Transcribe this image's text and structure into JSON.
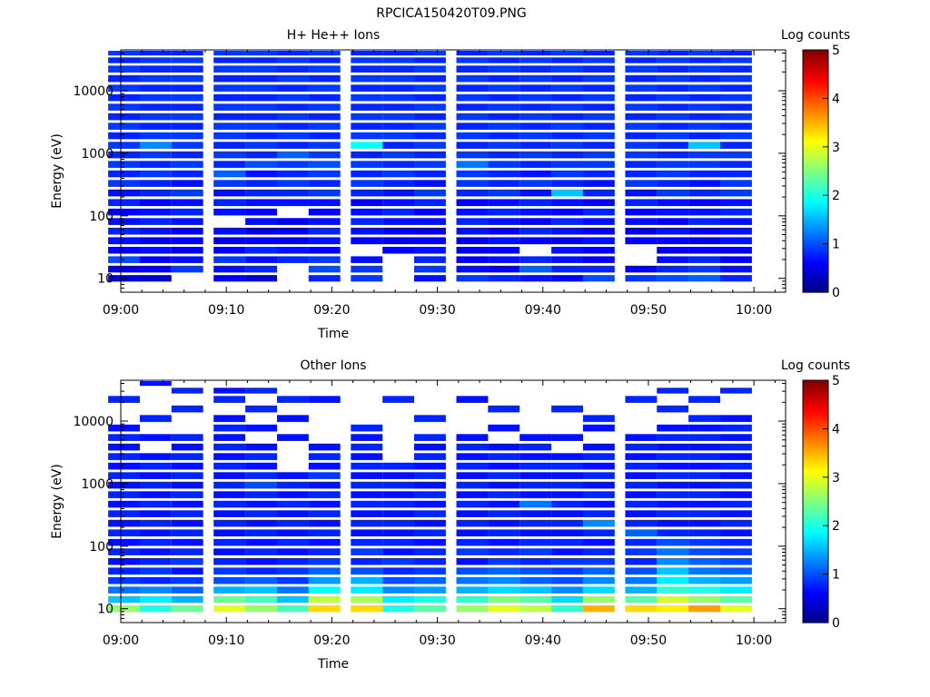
{
  "figure": {
    "title": "RPCICA150420T09.PNG"
  },
  "chart_data": [
    {
      "type": "heatmap",
      "title": "H+ He++ Ions",
      "xlabel": "Time",
      "ylabel": "Energy (eV)",
      "y_scale": "log",
      "ylim": [
        6,
        45000
      ],
      "xlim": [
        "09:00",
        "10:03"
      ],
      "x_ticks": [
        "09:00",
        "09:10",
        "09:20",
        "09:30",
        "09:40",
        "09:50",
        "10:00"
      ],
      "y_ticks": [
        "10",
        "100",
        "1000",
        "10000"
      ],
      "colorbar": {
        "label": "Log counts",
        "range": [
          0,
          5
        ],
        "ticks": [
          "0",
          "1",
          "2",
          "3",
          "4",
          "5"
        ]
      },
      "time_bins": [
        "09:00",
        "09:03",
        "09:06",
        "09:10",
        "09:13",
        "09:16",
        "09:19",
        "09:23",
        "09:26",
        "09:29",
        "09:33",
        "09:36",
        "09:39",
        "09:42",
        "09:45",
        "09:49",
        "09:52",
        "09:55",
        "09:58"
      ],
      "energy_bins_eV": [
        10,
        14,
        20,
        28,
        40,
        57,
        81,
        115,
        163,
        232,
        330,
        468,
        665,
        945,
        1342,
        1906,
        2708,
        3846,
        5463,
        7760,
        11022,
        15656,
        22238,
        31588,
        40000
      ],
      "log_counts": [
        [
          0.5,
          0.4,
          null,
          0.6,
          0.4,
          null,
          0.8,
          0.9,
          null,
          0.7,
          0.9,
          0.8,
          0.7,
          0.6,
          1.0,
          0.9,
          1.0,
          1.1,
          0.8
        ],
        [
          0.5,
          0.6,
          0.9,
          0.7,
          0.8,
          null,
          1.0,
          0.9,
          null,
          0.9,
          0.7,
          0.6,
          1.1,
          0.8,
          0.8,
          0.6,
          0.8,
          0.9,
          0.7
        ],
        [
          1.0,
          0.6,
          0.7,
          0.9,
          0.7,
          0.8,
          0.9,
          0.7,
          null,
          0.8,
          0.6,
          0.7,
          0.8,
          0.7,
          0.6,
          null,
          0.7,
          0.8,
          0.6
        ],
        [
          0.6,
          0.7,
          0.5,
          0.6,
          0.8,
          0.7,
          0.6,
          null,
          0.6,
          0.7,
          0.5,
          0.6,
          null,
          0.7,
          0.6,
          null,
          0.5,
          0.6,
          0.5
        ],
        [
          0.7,
          0.5,
          0.6,
          0.5,
          0.6,
          0.5,
          0.7,
          0.6,
          0.5,
          0.6,
          0.5,
          0.7,
          0.6,
          0.5,
          0.7,
          0.6,
          0.6,
          0.5,
          0.7
        ],
        [
          0.8,
          0.7,
          0.6,
          0.7,
          0.5,
          0.6,
          0.8,
          0.7,
          0.6,
          0.5,
          0.7,
          0.6,
          0.8,
          0.7,
          0.6,
          0.5,
          0.7,
          0.6,
          0.7
        ],
        [
          0.7,
          0.8,
          0.7,
          null,
          0.7,
          0.6,
          0.7,
          0.8,
          0.7,
          0.7,
          0.8,
          0.7,
          0.6,
          0.8,
          0.7,
          0.7,
          0.6,
          0.8,
          0.7
        ],
        [
          0.6,
          0.7,
          0.8,
          0.7,
          0.6,
          null,
          0.6,
          0.7,
          0.8,
          0.6,
          0.7,
          0.8,
          0.7,
          0.6,
          0.8,
          0.6,
          0.7,
          0.7,
          0.8
        ],
        [
          0.8,
          0.6,
          0.7,
          0.8,
          0.7,
          0.7,
          0.7,
          0.6,
          0.7,
          0.8,
          0.6,
          0.7,
          0.8,
          0.7,
          0.6,
          0.8,
          0.7,
          0.6,
          0.7
        ],
        [
          0.7,
          0.8,
          0.9,
          0.7,
          0.8,
          0.8,
          0.9,
          0.8,
          0.7,
          0.9,
          0.8,
          0.9,
          0.7,
          1.6,
          0.8,
          0.7,
          0.9,
          0.8,
          0.9
        ],
        [
          0.9,
          0.8,
          0.7,
          0.9,
          0.8,
          0.9,
          0.8,
          0.9,
          0.8,
          0.7,
          0.9,
          0.8,
          0.9,
          0.8,
          0.7,
          0.9,
          0.8,
          0.7,
          0.9
        ],
        [
          0.8,
          0.9,
          0.8,
          1.1,
          0.7,
          0.8,
          0.9,
          0.8,
          0.9,
          0.8,
          0.9,
          0.8,
          0.7,
          0.9,
          0.8,
          0.8,
          0.9,
          0.8,
          0.8
        ],
        [
          0.9,
          0.8,
          0.9,
          0.8,
          1.0,
          0.9,
          1.0,
          0.9,
          0.8,
          0.9,
          1.2,
          0.9,
          0.8,
          0.9,
          0.9,
          0.8,
          0.9,
          0.9,
          0.8
        ],
        [
          0.8,
          0.9,
          0.8,
          0.9,
          0.8,
          1.1,
          0.9,
          0.8,
          0.9,
          0.8,
          0.9,
          0.8,
          0.9,
          0.8,
          0.9,
          0.9,
          0.8,
          0.9,
          0.9
        ],
        [
          0.9,
          1.3,
          0.9,
          0.8,
          0.9,
          0.8,
          0.9,
          1.9,
          0.8,
          0.9,
          0.8,
          0.9,
          0.8,
          0.9,
          0.8,
          0.9,
          0.8,
          1.6,
          0.8
        ],
        [
          0.8,
          0.9,
          0.9,
          0.9,
          0.8,
          0.9,
          0.8,
          0.9,
          0.9,
          0.8,
          0.9,
          0.8,
          0.9,
          0.8,
          0.9,
          0.8,
          0.9,
          0.8,
          0.9
        ],
        [
          0.9,
          0.8,
          0.8,
          0.9,
          0.9,
          0.8,
          0.9,
          0.8,
          0.8,
          0.9,
          0.8,
          0.9,
          0.8,
          0.9,
          0.8,
          0.9,
          0.8,
          0.9,
          0.8
        ],
        [
          0.8,
          0.9,
          0.9,
          0.8,
          0.8,
          0.9,
          0.8,
          0.9,
          0.9,
          0.8,
          0.9,
          0.8,
          0.9,
          0.8,
          0.9,
          0.8,
          0.9,
          0.8,
          0.9
        ],
        [
          0.9,
          0.8,
          0.8,
          0.9,
          0.9,
          0.8,
          0.9,
          0.8,
          0.8,
          0.9,
          0.8,
          0.9,
          0.8,
          0.9,
          0.8,
          0.9,
          0.8,
          0.9,
          0.8
        ],
        [
          0.8,
          0.9,
          0.9,
          0.8,
          0.8,
          0.9,
          0.8,
          0.9,
          0.9,
          0.8,
          0.9,
          0.8,
          0.9,
          0.8,
          0.9,
          0.8,
          0.9,
          0.8,
          0.9
        ],
        [
          0.9,
          0.8,
          0.8,
          0.9,
          0.9,
          0.8,
          0.9,
          0.8,
          0.8,
          0.9,
          0.8,
          0.9,
          0.8,
          0.9,
          0.8,
          0.9,
          0.8,
          0.9,
          0.8
        ],
        [
          0.8,
          0.9,
          0.9,
          0.8,
          0.8,
          0.9,
          0.8,
          0.9,
          0.9,
          0.8,
          0.9,
          0.8,
          0.9,
          0.8,
          0.9,
          0.8,
          0.9,
          0.8,
          0.9
        ],
        [
          0.9,
          0.8,
          0.8,
          0.9,
          0.9,
          0.8,
          0.9,
          0.8,
          0.8,
          0.9,
          0.8,
          0.9,
          0.8,
          0.9,
          0.8,
          0.9,
          0.8,
          0.9,
          0.8
        ],
        [
          0.8,
          0.9,
          0.9,
          0.8,
          0.8,
          0.9,
          0.8,
          0.9,
          0.9,
          0.8,
          0.9,
          0.8,
          0.9,
          0.8,
          0.9,
          0.8,
          0.9,
          0.8,
          0.9
        ],
        [
          0.9,
          0.8,
          0.8,
          0.9,
          0.9,
          0.8,
          0.9,
          0.8,
          0.8,
          0.9,
          0.8,
          0.9,
          0.8,
          0.9,
          0.8,
          0.9,
          0.8,
          0.9,
          0.8
        ]
      ]
    },
    {
      "type": "heatmap",
      "title": "Other Ions",
      "xlabel": "Time",
      "ylabel": "Energy (eV)",
      "y_scale": "log",
      "ylim": [
        6,
        45000
      ],
      "xlim": [
        "09:00",
        "10:03"
      ],
      "x_ticks": [
        "09:00",
        "09:10",
        "09:20",
        "09:30",
        "09:40",
        "09:50",
        "10:00"
      ],
      "y_ticks": [
        "10",
        "100",
        "1000",
        "10000"
      ],
      "colorbar": {
        "label": "Log counts",
        "range": [
          0,
          5
        ],
        "ticks": [
          "0",
          "1",
          "2",
          "3",
          "4",
          "5"
        ]
      },
      "time_bins": [
        "09:00",
        "09:03",
        "09:06",
        "09:10",
        "09:13",
        "09:16",
        "09:19",
        "09:23",
        "09:26",
        "09:29",
        "09:33",
        "09:36",
        "09:39",
        "09:42",
        "09:45",
        "09:49",
        "09:52",
        "09:55",
        "09:58"
      ],
      "energy_bins_eV": [
        10,
        14,
        20,
        28,
        40,
        57,
        81,
        115,
        163,
        232,
        330,
        468,
        665,
        945,
        1342,
        1906,
        2708,
        3846,
        5463,
        7760,
        11022,
        15656,
        22238,
        31588,
        40000
      ],
      "log_counts": [
        [
          2.6,
          2.0,
          2.4,
          3.0,
          2.6,
          2.2,
          3.3,
          3.3,
          2.0,
          2.3,
          2.6,
          3.0,
          2.8,
          2.1,
          3.5,
          3.3,
          3.2,
          3.6,
          3.0
        ],
        [
          1.6,
          1.8,
          1.5,
          2.4,
          2.2,
          1.6,
          2.8,
          2.7,
          1.8,
          2.0,
          2.1,
          2.5,
          2.3,
          1.7,
          2.6,
          2.3,
          2.9,
          2.6,
          2.3
        ],
        [
          1.2,
          1.3,
          1.1,
          1.5,
          1.6,
          1.2,
          1.9,
          1.8,
          1.3,
          1.4,
          1.5,
          1.7,
          1.6,
          1.3,
          1.7,
          1.5,
          2.1,
          2.0,
          1.8
        ],
        [
          0.9,
          0.8,
          0.9,
          1.0,
          1.1,
          0.9,
          1.4,
          1.5,
          1.0,
          1.1,
          1.2,
          1.3,
          1.1,
          1.0,
          1.3,
          1.2,
          1.8,
          1.5,
          1.4
        ],
        [
          0.8,
          0.9,
          0.7,
          0.9,
          0.8,
          0.9,
          1.1,
          1.0,
          0.8,
          0.9,
          1.0,
          1.1,
          1.0,
          0.9,
          1.1,
          1.0,
          1.6,
          1.2,
          1.1
        ],
        [
          0.7,
          0.8,
          0.9,
          0.8,
          0.7,
          0.8,
          0.9,
          0.8,
          0.9,
          0.8,
          0.7,
          0.9,
          0.8,
          0.9,
          0.9,
          0.8,
          1.3,
          1.1,
          1.0
        ],
        [
          0.8,
          0.7,
          0.8,
          0.7,
          0.8,
          0.7,
          0.8,
          0.9,
          0.7,
          0.8,
          0.9,
          0.8,
          0.9,
          0.7,
          0.8,
          0.9,
          1.2,
          1.0,
          0.9
        ],
        [
          0.7,
          0.8,
          0.7,
          0.8,
          0.7,
          0.8,
          0.7,
          0.8,
          0.8,
          0.7,
          0.8,
          0.7,
          0.8,
          0.8,
          0.7,
          0.8,
          1.0,
          0.9,
          0.8
        ],
        [
          0.8,
          0.7,
          0.8,
          0.7,
          0.8,
          0.7,
          0.8,
          0.7,
          0.7,
          0.8,
          0.7,
          0.8,
          0.7,
          0.7,
          0.8,
          1.1,
          0.8,
          0.8,
          0.7
        ],
        [
          0.7,
          0.8,
          0.7,
          0.8,
          0.7,
          0.8,
          0.7,
          0.8,
          0.8,
          0.7,
          0.8,
          0.7,
          0.8,
          0.8,
          1.3,
          0.8,
          0.7,
          0.7,
          0.8
        ],
        [
          0.8,
          0.7,
          0.8,
          0.7,
          0.8,
          0.7,
          0.8,
          0.7,
          0.7,
          0.8,
          0.7,
          0.8,
          0.7,
          0.7,
          0.8,
          0.7,
          0.8,
          0.8,
          0.7
        ],
        [
          0.7,
          0.8,
          0.7,
          0.8,
          0.7,
          0.8,
          0.7,
          0.8,
          0.8,
          0.7,
          0.8,
          0.7,
          1.2,
          0.8,
          0.7,
          0.8,
          0.7,
          0.7,
          0.8
        ],
        [
          0.8,
          0.7,
          0.8,
          0.7,
          0.8,
          0.7,
          0.8,
          0.7,
          0.7,
          0.8,
          0.7,
          0.8,
          0.7,
          0.7,
          0.8,
          0.7,
          0.8,
          0.8,
          0.7
        ],
        [
          0.7,
          0.8,
          0.7,
          0.8,
          1.0,
          0.8,
          0.7,
          0.8,
          0.8,
          0.7,
          0.8,
          0.7,
          0.8,
          0.8,
          0.7,
          0.8,
          0.7,
          0.7,
          0.8
        ],
        [
          0.8,
          0.7,
          0.8,
          0.7,
          0.8,
          0.7,
          0.9,
          0.7,
          0.7,
          0.8,
          0.7,
          0.8,
          0.7,
          0.7,
          0.8,
          0.7,
          0.8,
          0.8,
          0.7
        ],
        [
          0.7,
          0.8,
          0.7,
          0.8,
          0.7,
          null,
          0.7,
          0.8,
          0.8,
          0.7,
          0.8,
          0.7,
          0.8,
          0.8,
          0.7,
          0.8,
          0.7,
          0.7,
          0.8
        ],
        [
          0.8,
          0.7,
          0.8,
          0.7,
          0.8,
          null,
          0.8,
          0.7,
          null,
          0.8,
          0.7,
          0.8,
          0.7,
          0.7,
          0.8,
          0.7,
          0.8,
          0.8,
          0.7
        ],
        [
          0.7,
          null,
          0.7,
          0.8,
          0.7,
          null,
          0.7,
          0.8,
          null,
          0.7,
          0.8,
          0.7,
          0.8,
          null,
          0.7,
          0.8,
          0.7,
          0.7,
          0.8
        ],
        [
          0.8,
          0.7,
          0.8,
          0.7,
          null,
          0.7,
          null,
          0.7,
          null,
          0.8,
          0.7,
          null,
          0.7,
          0.7,
          null,
          0.7,
          0.8,
          0.8,
          0.7
        ],
        [
          0.7,
          null,
          null,
          0.8,
          0.7,
          null,
          null,
          0.8,
          null,
          null,
          null,
          0.7,
          null,
          null,
          0.7,
          null,
          0.7,
          0.7,
          0.8
        ],
        [
          null,
          0.8,
          null,
          0.7,
          null,
          0.7,
          null,
          null,
          null,
          0.8,
          null,
          null,
          null,
          null,
          0.8,
          null,
          null,
          0.8,
          0.7
        ],
        [
          null,
          null,
          0.8,
          null,
          0.8,
          null,
          null,
          null,
          null,
          null,
          null,
          0.8,
          null,
          0.8,
          null,
          null,
          0.8,
          null,
          null
        ],
        [
          0.8,
          null,
          null,
          0.8,
          null,
          0.8,
          0.7,
          null,
          0.8,
          null,
          0.7,
          null,
          null,
          null,
          null,
          0.8,
          null,
          0.8,
          null
        ],
        [
          null,
          null,
          0.8,
          0.7,
          0.8,
          null,
          null,
          null,
          null,
          null,
          null,
          null,
          null,
          null,
          null,
          null,
          0.8,
          null,
          0.8
        ],
        [
          null,
          0.7,
          null,
          null,
          null,
          null,
          null,
          null,
          null,
          null,
          null,
          null,
          null,
          null,
          null,
          null,
          null,
          null,
          null
        ]
      ]
    }
  ]
}
